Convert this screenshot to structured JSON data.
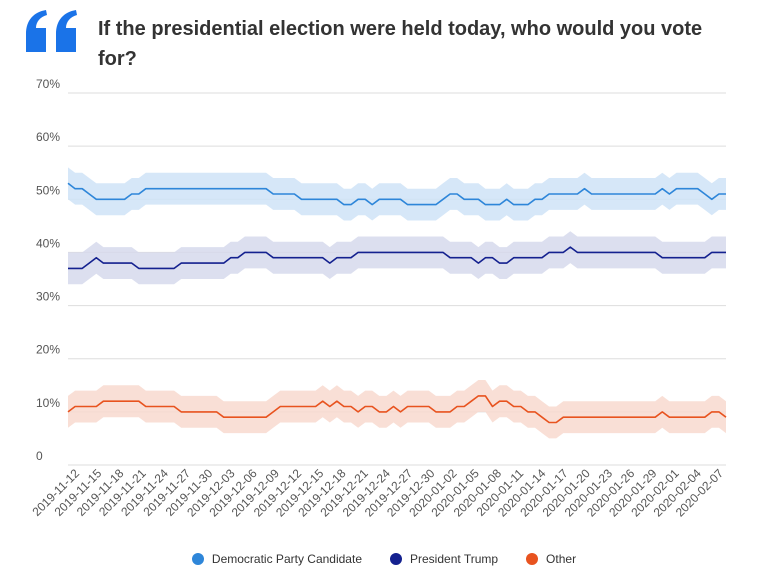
{
  "title": "If the presidential election were held today, who would you vote for?",
  "icon": "quote-icon",
  "colors": {
    "accent": "#1a73e8",
    "grid": "#dddddd"
  },
  "chart_data": {
    "type": "line",
    "title": "If the presidential election were held today, who would you vote for?",
    "ylim": [
      0,
      70
    ],
    "y_ticks": [
      "0",
      "10%",
      "20%",
      "30%",
      "40%",
      "50%",
      "60%",
      "70%"
    ],
    "x_tick_labels": [
      "2019-11-12",
      "2019-11-15",
      "2019-11-18",
      "2019-11-21",
      "2019-11-24",
      "2019-11-27",
      "2019-11-30",
      "2019-12-03",
      "2019-12-06",
      "2019-12-09",
      "2019-12-12",
      "2019-12-15",
      "2019-12-18",
      "2019-12-21",
      "2019-12-24",
      "2019-12-27",
      "2019-12-30",
      "2020-01-02",
      "2020-01-05",
      "2020-01-08",
      "2020-01-11",
      "2020-01-14",
      "2020-01-17",
      "2020-01-20",
      "2020-01-23",
      "2020-01-26",
      "2020-01-29",
      "2020-02-01",
      "2020-02-04",
      "2020-02-07"
    ],
    "grid": true,
    "legend": "bottom",
    "series": [
      {
        "name": "Democratic Party Candidate",
        "color": "#2e86d9",
        "band_color": "#cfe3f7",
        "band": 3,
        "values": [
          53,
          52,
          52,
          51,
          50,
          50,
          50,
          50,
          50,
          51,
          51,
          52,
          52,
          52,
          52,
          52,
          52,
          52,
          52,
          52,
          52,
          52,
          52,
          52,
          52,
          52,
          52,
          52,
          52,
          51,
          51,
          51,
          51,
          50,
          50,
          50,
          50,
          50,
          50,
          49,
          49,
          50,
          50,
          49,
          50,
          50,
          50,
          50,
          49,
          49,
          49,
          49,
          49,
          50,
          51,
          51,
          50,
          50,
          50,
          49,
          49,
          49,
          50,
          49,
          49,
          49,
          50,
          50,
          51,
          51,
          51,
          51,
          51,
          52,
          51,
          51,
          51,
          51,
          51,
          51,
          51,
          51,
          51,
          51,
          52,
          51,
          52,
          52,
          52,
          52,
          51,
          50,
          51,
          51
        ]
      },
      {
        "name": "President Trump",
        "color": "#14218f",
        "band_color": "#d6d9ec",
        "band": 3,
        "values": [
          37,
          37,
          37,
          38,
          39,
          38,
          38,
          38,
          38,
          38,
          37,
          37,
          37,
          37,
          37,
          37,
          38,
          38,
          38,
          38,
          38,
          38,
          38,
          39,
          39,
          40,
          40,
          40,
          40,
          39,
          39,
          39,
          39,
          39,
          39,
          39,
          39,
          38,
          39,
          39,
          39,
          40,
          40,
          40,
          40,
          40,
          40,
          40,
          40,
          40,
          40,
          40,
          40,
          40,
          39,
          39,
          39,
          39,
          38,
          39,
          39,
          38,
          38,
          39,
          39,
          39,
          39,
          39,
          40,
          40,
          40,
          41,
          40,
          40,
          40,
          40,
          40,
          40,
          40,
          40,
          40,
          40,
          40,
          40,
          39,
          39,
          39,
          39,
          39,
          39,
          39,
          40,
          40,
          40
        ]
      },
      {
        "name": "Other",
        "color": "#e8531f",
        "band_color": "#f8d9cf",
        "band": 3,
        "values": [
          10,
          11,
          11,
          11,
          11,
          12,
          12,
          12,
          12,
          12,
          12,
          11,
          11,
          11,
          11,
          11,
          10,
          10,
          10,
          10,
          10,
          10,
          9,
          9,
          9,
          9,
          9,
          9,
          9,
          10,
          11,
          11,
          11,
          11,
          11,
          11,
          12,
          11,
          12,
          11,
          11,
          10,
          11,
          11,
          10,
          10,
          11,
          10,
          11,
          11,
          11,
          11,
          10,
          10,
          10,
          11,
          11,
          12,
          13,
          13,
          11,
          12,
          12,
          11,
          11,
          10,
          10,
          9,
          8,
          8,
          9,
          9,
          9,
          9,
          9,
          9,
          9,
          9,
          9,
          9,
          9,
          9,
          9,
          9,
          10,
          9,
          9,
          9,
          9,
          9,
          9,
          10,
          10,
          9
        ]
      }
    ]
  }
}
